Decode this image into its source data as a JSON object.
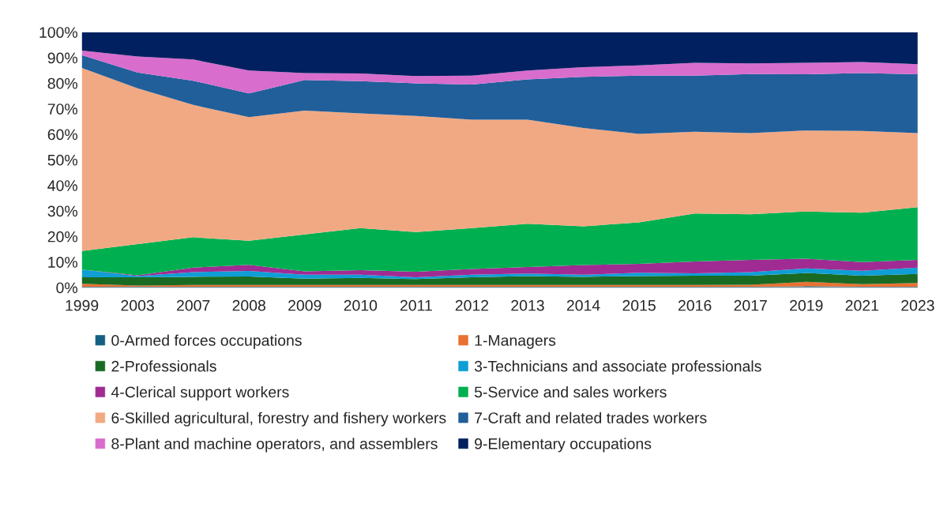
{
  "chart_data": {
    "type": "area",
    "stacked": true,
    "categories": [
      "1999",
      "2003",
      "2007",
      "2008",
      "2009",
      "2010",
      "2011",
      "2012",
      "2013",
      "2014",
      "2015",
      "2016",
      "2017",
      "2019",
      "2021",
      "2023"
    ],
    "ylim": [
      0,
      100
    ],
    "yticks": [
      {
        "value": 0,
        "label": "0%"
      },
      {
        "value": 10,
        "label": "10%"
      },
      {
        "value": 20,
        "label": "20%"
      },
      {
        "value": 30,
        "label": "30%"
      },
      {
        "value": 40,
        "label": "40%"
      },
      {
        "value": 50,
        "label": "50%"
      },
      {
        "value": 60,
        "label": "60%"
      },
      {
        "value": 70,
        "label": "70%"
      },
      {
        "value": 80,
        "label": "80%"
      },
      {
        "value": 90,
        "label": "90%"
      },
      {
        "value": 100,
        "label": "100%"
      }
    ],
    "grid": false,
    "legend": "bottom",
    "series": [
      {
        "name": "0-Armed forces occupations",
        "color": "#156082",
        "values": [
          0.3,
          0.3,
          0.3,
          0.3,
          0.3,
          0.3,
          0.3,
          0.3,
          0.3,
          0.3,
          0.3,
          0.3,
          0.3,
          0.5,
          0.3,
          0.3
        ]
      },
      {
        "name": "1-Managers",
        "color": "#e97132",
        "values": [
          1.2,
          0.5,
          0.7,
          0.7,
          0.7,
          0.7,
          0.7,
          0.7,
          0.7,
          0.7,
          0.7,
          0.7,
          0.8,
          1.7,
          1.0,
          1.5
        ]
      },
      {
        "name": "2-Professionals",
        "color": "#196b24",
        "values": [
          2.5,
          3.2,
          3.2,
          3.3,
          2.5,
          2.8,
          2.3,
          3.0,
          3.5,
          3.2,
          3.5,
          3.6,
          3.5,
          3.5,
          3.3,
          3.5
        ]
      },
      {
        "name": "3-Technicians and associate professionals",
        "color": "#0f9ed5",
        "values": [
          3.0,
          0.5,
          1.8,
          2.2,
          1.5,
          1.2,
          0.7,
          1.0,
          1.0,
          0.8,
          1.3,
          1.0,
          1.4,
          1.8,
          2.0,
          2.5
        ]
      },
      {
        "name": "4-Clerical support workers",
        "color": "#a02b93",
        "values": [
          0.0,
          0.3,
          1.8,
          2.4,
          1.3,
          1.8,
          2.2,
          2.3,
          2.5,
          3.8,
          3.5,
          4.6,
          4.8,
          3.8,
          3.4,
          3.0
        ]
      },
      {
        "name": "5-Service and sales workers",
        "color": "#00b050",
        "values": [
          7.3,
          12.2,
          11.9,
          9.4,
          14.5,
          16.5,
          15.5,
          16.0,
          17.0,
          15.2,
          16.2,
          18.8,
          17.9,
          18.5,
          19.3,
          20.7
        ]
      },
      {
        "name": "6-Skilled agricultural, forestry and fishery workers",
        "color": "#f1a983",
        "values": [
          71.7,
          61.0,
          51.8,
          48.4,
          48.5,
          44.9,
          45.5,
          42.4,
          40.7,
          38.5,
          34.7,
          32.0,
          31.8,
          31.7,
          32.0,
          29.0
        ]
      },
      {
        "name": "7-Craft and related trades workers",
        "color": "#215f9a",
        "values": [
          5.0,
          6.2,
          9.5,
          9.3,
          12.0,
          12.6,
          12.8,
          13.8,
          15.8,
          20.0,
          22.8,
          22.0,
          23.1,
          22.0,
          22.7,
          23.0
        ]
      },
      {
        "name": "8-Plant and machine operators, and assemblers",
        "color": "#d86dcd",
        "values": [
          1.8,
          6.3,
          8.3,
          9.0,
          2.7,
          3.0,
          2.8,
          3.5,
          3.5,
          3.8,
          4.0,
          5.0,
          4.2,
          4.5,
          4.3,
          4.0
        ]
      },
      {
        "name": "9-Elementary occupations",
        "color": "#002060",
        "values": [
          7.2,
          9.5,
          10.7,
          15.0,
          16.0,
          16.2,
          17.2,
          17.0,
          15.0,
          13.7,
          13.0,
          12.0,
          12.2,
          12.0,
          11.7,
          12.5
        ]
      }
    ]
  }
}
